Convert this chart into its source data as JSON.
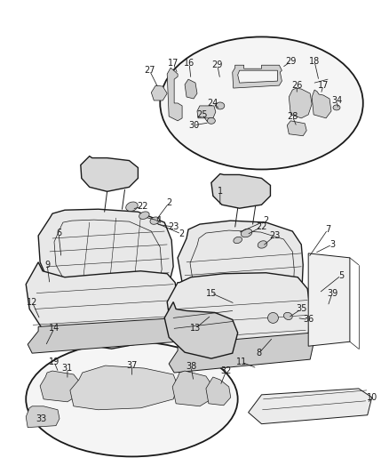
{
  "bg_color": "#ffffff",
  "line_color": "#1a1a1a",
  "fig_width": 4.38,
  "fig_height": 5.33,
  "dpi": 100
}
